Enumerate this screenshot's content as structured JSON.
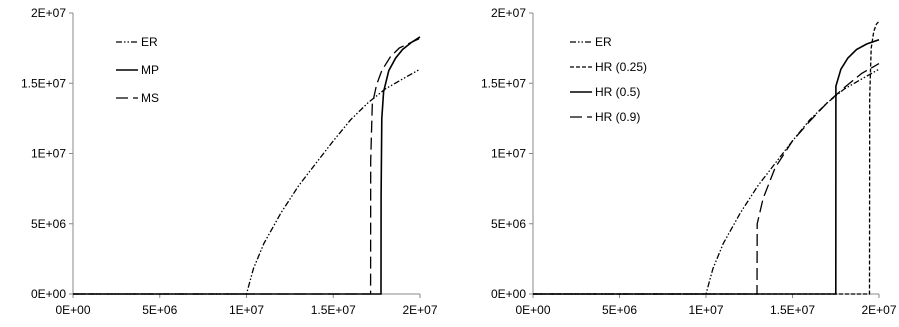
{
  "chart_data": [
    {
      "type": "line",
      "title": "",
      "xlabel": "",
      "ylabel": "",
      "xlim": [
        0,
        20000000
      ],
      "ylim": [
        0,
        20000000
      ],
      "x_ticks": [
        "0E+00",
        "5E+06",
        "1E+07",
        "1.5E+07",
        "2E+07"
      ],
      "y_ticks": [
        "0E+00",
        "5E+06",
        "1E+07",
        "1.5E+07",
        "2E+07"
      ],
      "grid": false,
      "legend_position": "top-left",
      "series": [
        {
          "name": "ER",
          "style": "dash-dot-dot",
          "points": [
            [
              0,
              0
            ],
            [
              10000000,
              0
            ],
            [
              10400000,
              1800000
            ],
            [
              11000000,
              3600000
            ],
            [
              12000000,
              5800000
            ],
            [
              13000000,
              7700000
            ],
            [
              14000000,
              9300000
            ],
            [
              15000000,
              10900000
            ],
            [
              16000000,
              12400000
            ],
            [
              17000000,
              13600000
            ],
            [
              18000000,
              14600000
            ],
            [
              19000000,
              15300000
            ],
            [
              20000000,
              16000000
            ]
          ]
        },
        {
          "name": "MP",
          "style": "solid",
          "points": [
            [
              0,
              0
            ],
            [
              17750000,
              0
            ],
            [
              17760000,
              7000000
            ],
            [
              17800000,
              12500000
            ],
            [
              17900000,
              14400000
            ],
            [
              18200000,
              15900000
            ],
            [
              18600000,
              16800000
            ],
            [
              19000000,
              17400000
            ],
            [
              19500000,
              17900000
            ],
            [
              20000000,
              18300000
            ]
          ]
        },
        {
          "name": "MS",
          "style": "long-dash",
          "points": [
            [
              0,
              0
            ],
            [
              17150000,
              0
            ],
            [
              17160000,
              9500000
            ],
            [
              17250000,
              13500000
            ],
            [
              17500000,
              14900000
            ],
            [
              17800000,
              15900000
            ],
            [
              18300000,
              16900000
            ],
            [
              18800000,
              17500000
            ],
            [
              19300000,
              17800000
            ],
            [
              20000000,
              18200000
            ]
          ]
        }
      ]
    },
    {
      "type": "line",
      "title": "",
      "xlabel": "",
      "ylabel": "",
      "xlim": [
        0,
        20000000
      ],
      "ylim": [
        0,
        20000000
      ],
      "x_ticks": [
        "0E+00",
        "5E+06",
        "1E+07",
        "1.5E+07",
        "2E+07"
      ],
      "y_ticks": [
        "0E+00",
        "5E+06",
        "1E+07",
        "1.5E+07",
        "2E+07"
      ],
      "grid": false,
      "legend_position": "top-left",
      "series": [
        {
          "name": "ER",
          "style": "dash-dot-dot",
          "points": [
            [
              0,
              0
            ],
            [
              10000000,
              0
            ],
            [
              10400000,
              1800000
            ],
            [
              11000000,
              3600000
            ],
            [
              12000000,
              5800000
            ],
            [
              13000000,
              7700000
            ],
            [
              14000000,
              9300000
            ],
            [
              15000000,
              10900000
            ],
            [
              16000000,
              12400000
            ],
            [
              17000000,
              13600000
            ],
            [
              18000000,
              14600000
            ],
            [
              19000000,
              15300000
            ],
            [
              20000000,
              16000000
            ]
          ]
        },
        {
          "name": "HR (0.25)",
          "style": "short-dash",
          "points": [
            [
              0,
              0
            ],
            [
              19450000,
              0
            ],
            [
              19460000,
              14000000
            ],
            [
              19550000,
              17500000
            ],
            [
              19700000,
              18700000
            ],
            [
              19850000,
              19200000
            ],
            [
              20000000,
              19400000
            ]
          ]
        },
        {
          "name": "HR (0.5)",
          "style": "solid",
          "points": [
            [
              0,
              0
            ],
            [
              17500000,
              0
            ],
            [
              17510000,
              14800000
            ],
            [
              17800000,
              16000000
            ],
            [
              18200000,
              16800000
            ],
            [
              18700000,
              17400000
            ],
            [
              19300000,
              17800000
            ],
            [
              20000000,
              18100000
            ]
          ]
        },
        {
          "name": "HR (0.9)",
          "style": "long-dash",
          "points": [
            [
              0,
              0
            ],
            [
              12950000,
              0
            ],
            [
              12960000,
              5000000
            ],
            [
              13300000,
              6800000
            ],
            [
              14000000,
              9000000
            ],
            [
              15000000,
              10900000
            ],
            [
              16000000,
              12300000
            ],
            [
              17000000,
              13600000
            ],
            [
              18000000,
              14700000
            ],
            [
              19000000,
              15700000
            ],
            [
              20000000,
              16400000
            ]
          ]
        }
      ]
    }
  ]
}
